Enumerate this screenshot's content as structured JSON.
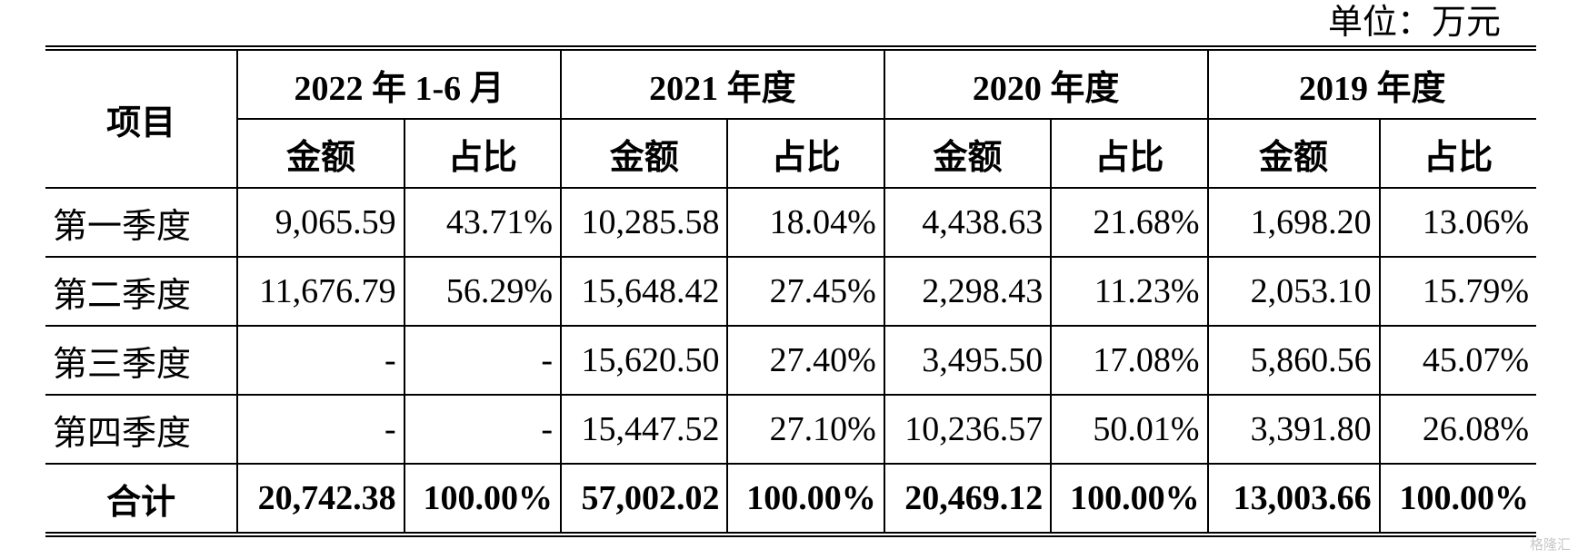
{
  "unit_label": "单位：万元",
  "header": {
    "item": "项目",
    "periods": [
      "2022 年 1-6 月",
      "2021 年度",
      "2020 年度",
      "2019 年度"
    ],
    "amount": "金额",
    "ratio": "占比"
  },
  "rows": [
    {
      "label": "第一季度",
      "cells": [
        "9,065.59",
        "43.71%",
        "10,285.58",
        "18.04%",
        "4,438.63",
        "21.68%",
        "1,698.20",
        "13.06%"
      ]
    },
    {
      "label": "第二季度",
      "cells": [
        "11,676.79",
        "56.29%",
        "15,648.42",
        "27.45%",
        "2,298.43",
        "11.23%",
        "2,053.10",
        "15.79%"
      ]
    },
    {
      "label": "第三季度",
      "cells": [
        "-",
        "-",
        "15,620.50",
        "27.40%",
        "3,495.50",
        "17.08%",
        "5,860.56",
        "45.07%"
      ]
    },
    {
      "label": "第四季度",
      "cells": [
        "-",
        "-",
        "15,447.52",
        "27.10%",
        "10,236.57",
        "50.01%",
        "3,391.80",
        "26.08%"
      ]
    }
  ],
  "total": {
    "label": "合计",
    "cells": [
      "20,742.38",
      "100.00%",
      "57,002.02",
      "100.00%",
      "20,469.12",
      "100.00%",
      "13,003.66",
      "100.00%"
    ]
  },
  "watermark": "格隆汇"
}
